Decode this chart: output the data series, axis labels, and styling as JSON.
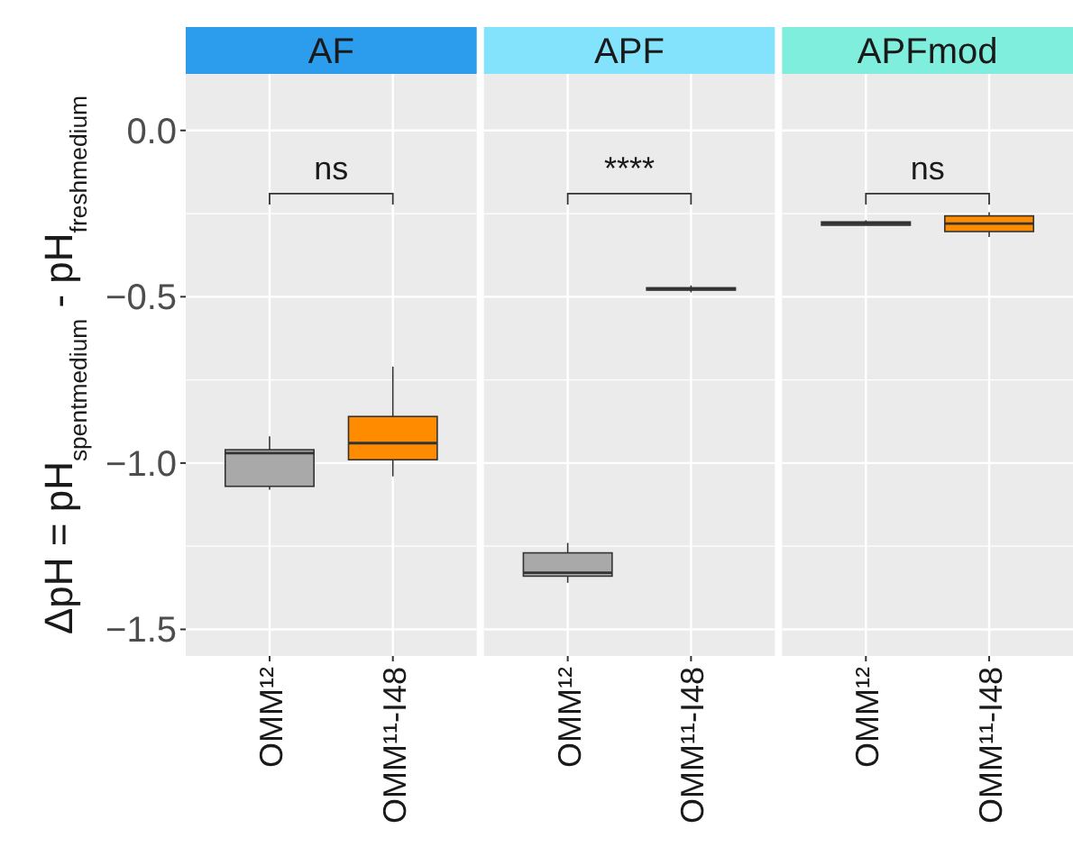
{
  "chart_data": [
    {
      "type": "box",
      "title": "AF",
      "ylabel": "ΔpH = pH$_{spentmedium}$ - pH$_{freshmedium}$",
      "categories": [
        "OMM¹²",
        "OMM¹¹-I48"
      ],
      "colors": [
        "#a9a9a9",
        "#ff8c00"
      ],
      "ylim": [
        -1.58,
        0.17
      ],
      "yticks": [
        {
          "value": 0,
          "label": "0.0"
        },
        {
          "value": -0.5,
          "label": "−0.5"
        },
        {
          "value": -1,
          "label": "−1.0"
        },
        {
          "value": -1.5,
          "label": "−1.5"
        }
      ],
      "grid": true,
      "boxes": [
        {
          "low": -1.08,
          "q1": -1.07,
          "median": -0.97,
          "q3": -0.96,
          "high": -0.92
        },
        {
          "low": -1.04,
          "q1": -0.99,
          "median": -0.94,
          "q3": -0.86,
          "high": -0.71
        }
      ],
      "annotations": [
        "ns"
      ]
    },
    {
      "type": "box",
      "title": "APF",
      "categories": [
        "OMM¹²",
        "OMM¹¹-I48"
      ],
      "colors": [
        "#a9a9a9",
        "#ff8c00"
      ],
      "ylim": [
        -1.58,
        0.17
      ],
      "yticks": [
        0,
        -0.5,
        -1,
        -1.5
      ],
      "grid": true,
      "tick_labels": "x",
      "boxes": [
        {
          "low": -1.36,
          "q1": -1.34,
          "median": -1.33,
          "q3": -1.27,
          "high": -1.24
        },
        {
          "low": -0.487,
          "q1": -0.48,
          "median": -0.477,
          "q3": -0.473,
          "high": -0.466
        }
      ],
      "annotations": [
        "****"
      ]
    },
    {
      "type": "box",
      "title": "APFmod",
      "categories": [
        "OMM¹²",
        "OMM¹¹-I48"
      ],
      "colors": [
        "#a9a9a9",
        "#ff8c00"
      ],
      "ylim": [
        -1.58,
        0.17
      ],
      "yticks": [
        0,
        -0.5,
        -1,
        -1.5
      ],
      "grid": true,
      "tick_labels": "x",
      "boxes": [
        {
          "low": -0.285,
          "q1": -0.285,
          "median": -0.28,
          "q3": -0.275,
          "high": -0.27
        },
        {
          "low": -0.32,
          "q1": -0.304,
          "median": -0.28,
          "q3": -0.257,
          "high": -0.246
        }
      ],
      "annotations": [
        "ns"
      ]
    }
  ]
}
